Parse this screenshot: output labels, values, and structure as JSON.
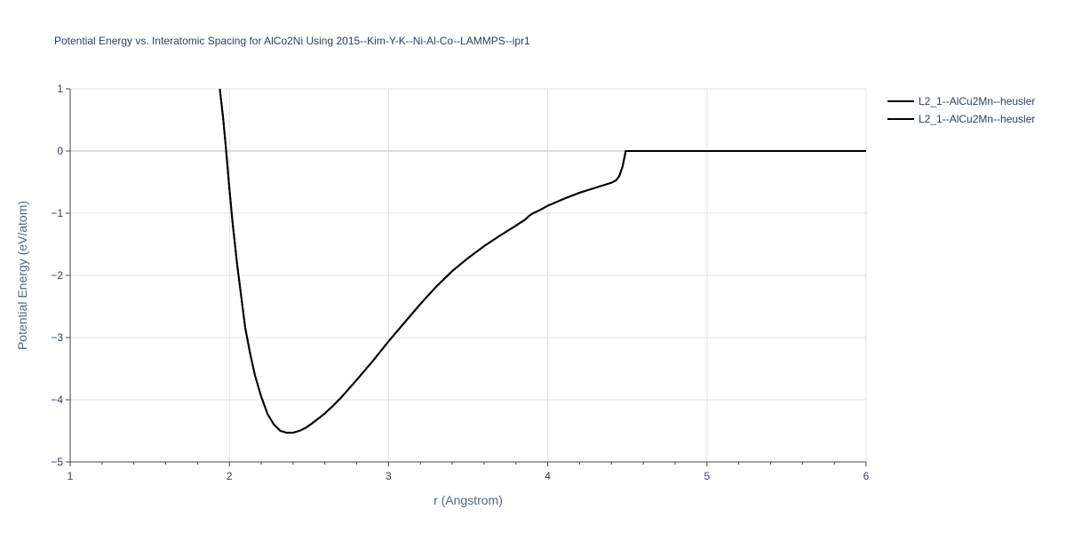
{
  "chart_data": {
    "type": "line",
    "title": "Potential Energy vs. Interatomic Spacing for AlCo2Ni Using 2015--Kim-Y-K--Ni-Al-Co--LAMMPS--ipr1",
    "xlabel": "r (Angstrom)",
    "ylabel": "Potential Energy (eV/atom)",
    "xlim": [
      1,
      6
    ],
    "ylim": [
      -5,
      1
    ],
    "x_ticks": [
      "1",
      "2",
      "3",
      "4",
      "5",
      "6"
    ],
    "y_ticks": [
      "1",
      "0",
      "−1",
      "−2",
      "−3",
      "−4",
      "−5"
    ],
    "y_tick_values": [
      1,
      0,
      -1,
      -2,
      -3,
      -4,
      -5
    ],
    "x_tick_values": [
      1,
      2,
      3,
      4,
      5,
      6
    ],
    "grid": true,
    "legend_position": "top-right",
    "series": [
      {
        "name": "L2_1--AlCu2Mn--heusler",
        "color": "#000000",
        "x": [
          1.94,
          1.96,
          1.98,
          2.0,
          2.02,
          2.05,
          2.08,
          2.1,
          2.13,
          2.16,
          2.2,
          2.24,
          2.28,
          2.32,
          2.36,
          2.4,
          2.44,
          2.48,
          2.52,
          2.56,
          2.6,
          2.65,
          2.7,
          2.8,
          2.9,
          3.0,
          3.1,
          3.2,
          3.3,
          3.4,
          3.5,
          3.6,
          3.7,
          3.8,
          3.86,
          3.88,
          3.9,
          3.95,
          4.0,
          4.1,
          4.2,
          4.3,
          4.4,
          4.43,
          4.45,
          4.47,
          4.49,
          4.5,
          5.0,
          5.5,
          6.0
        ],
        "y": [
          1.0,
          0.55,
          0.0,
          -0.6,
          -1.15,
          -1.85,
          -2.45,
          -2.85,
          -3.25,
          -3.6,
          -3.95,
          -4.23,
          -4.4,
          -4.5,
          -4.53,
          -4.53,
          -4.5,
          -4.45,
          -4.38,
          -4.3,
          -4.22,
          -4.1,
          -3.97,
          -3.68,
          -3.38,
          -3.06,
          -2.76,
          -2.46,
          -2.18,
          -1.93,
          -1.72,
          -1.53,
          -1.36,
          -1.2,
          -1.1,
          -1.05,
          -1.01,
          -0.95,
          -0.88,
          -0.77,
          -0.67,
          -0.59,
          -0.51,
          -0.47,
          -0.4,
          -0.25,
          0.0,
          0.0,
          0.0,
          0.0,
          0.0
        ]
      },
      {
        "name": "L2_1--AlCu2Mn--heusler",
        "color": "#000000",
        "x": [
          1.94,
          1.96,
          1.98,
          2.0,
          2.02,
          2.05,
          2.08,
          2.1,
          2.13,
          2.16,
          2.2,
          2.24,
          2.28,
          2.32,
          2.36,
          2.4,
          2.44,
          2.48,
          2.52,
          2.56,
          2.6,
          2.65,
          2.7,
          2.8,
          2.9,
          3.0,
          3.1,
          3.2,
          3.3,
          3.4,
          3.5,
          3.6,
          3.7,
          3.8,
          3.86,
          3.88,
          3.9,
          3.95,
          4.0,
          4.1,
          4.2,
          4.3,
          4.4,
          4.43,
          4.45,
          4.47,
          4.49,
          4.5,
          5.0,
          5.5,
          6.0
        ],
        "y": [
          1.0,
          0.55,
          0.0,
          -0.6,
          -1.15,
          -1.85,
          -2.45,
          -2.85,
          -3.25,
          -3.6,
          -3.95,
          -4.23,
          -4.4,
          -4.5,
          -4.53,
          -4.53,
          -4.5,
          -4.45,
          -4.38,
          -4.3,
          -4.22,
          -4.1,
          -3.97,
          -3.68,
          -3.38,
          -3.06,
          -2.76,
          -2.46,
          -2.18,
          -1.93,
          -1.72,
          -1.53,
          -1.36,
          -1.2,
          -1.1,
          -1.05,
          -1.01,
          -0.95,
          -0.88,
          -0.77,
          -0.67,
          -0.59,
          -0.51,
          -0.47,
          -0.4,
          -0.25,
          0.0,
          0.0,
          0.0,
          0.0,
          0.0
        ]
      }
    ]
  }
}
